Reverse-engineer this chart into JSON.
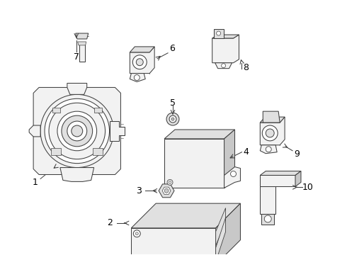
{
  "background_color": "#ffffff",
  "line_color": "#404040",
  "label_color": "#000000",
  "figsize": [
    4.9,
    3.6
  ],
  "dpi": 100,
  "lw": 0.75,
  "gray1": "#f2f2f2",
  "gray2": "#e0e0e0",
  "gray3": "#c8c8c8"
}
